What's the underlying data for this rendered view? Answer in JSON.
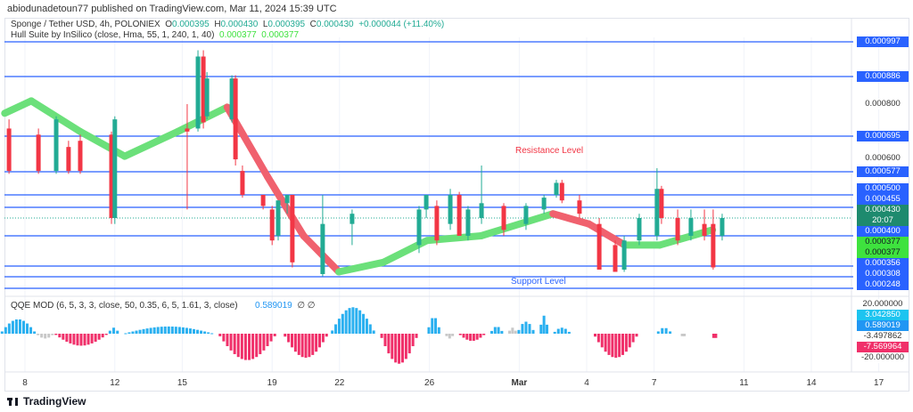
{
  "header": {
    "published": "abiodunadetoun77 published on TradingView.com, Mar 11, 2024 15:39 UTC"
  },
  "legend": {
    "symbol": "Sponge / Tether USD, 4h, POLONIEX",
    "o_label": "O",
    "o": "0.000395",
    "h_label": "H",
    "h": "0.000430",
    "l_label": "L",
    "l": "0.000395",
    "c_label": "C",
    "c": "0.000430",
    "change": "+0.000044 (+11.40%)",
    "hull": "Hull Suite by InSilico (close, Hma, 55, 1, 240, 1, 40)",
    "hull_v1": "0.000377",
    "hull_v2": "0.000377",
    "qqe": "QQE MOD (6, 5, 3, 3, close, 50, 0.35, 6, 5, 1.61, 3, close)",
    "qqe_v": "0.589019",
    "qqe_icons": "∅  ∅"
  },
  "annotations": {
    "resistance": "Resistance Level",
    "support": "Support Level"
  },
  "colors": {
    "up": "#22ab94",
    "down": "#f23645",
    "hull_up": "#6be07a",
    "hull_down": "#f0616e",
    "level": "#2962ff",
    "qqe_blue": "#2ab0f0",
    "qqe_pink": "#f0306a",
    "qqe_gray": "#c8c8c8"
  },
  "price_axis": [
    {
      "text": "0.000997",
      "style": "level"
    },
    {
      "text": "0.000886",
      "style": "level"
    },
    {
      "text": "0.000800",
      "style": "text"
    },
    {
      "text": "0.000695",
      "style": "level"
    },
    {
      "text": "0.000600",
      "style": "text"
    },
    {
      "text": "0.000577",
      "style": "level"
    },
    {
      "text": "0.000500",
      "style": "level"
    },
    {
      "text": "0.000455",
      "style": "level"
    },
    {
      "text": "0.000430",
      "style": "last"
    },
    {
      "text": "20:07",
      "style": "last"
    },
    {
      "text": "0.000400",
      "style": "level"
    },
    {
      "text": "0.000377",
      "style": "hull"
    },
    {
      "text": "0.000377",
      "style": "hull"
    },
    {
      "text": "0.000356",
      "style": "level"
    },
    {
      "text": "0.000308",
      "style": "level"
    },
    {
      "text": "0.000248",
      "style": "level"
    }
  ],
  "qqe_axis": [
    {
      "text": "20.000000",
      "style": "text"
    },
    {
      "text": "3.042850",
      "style": "cyan"
    },
    {
      "text": "0.589019",
      "style": "blue"
    },
    {
      "text": "-3.497862",
      "style": "text"
    },
    {
      "text": "-7.569964",
      "style": "pink"
    },
    {
      "text": "-20.000000",
      "style": "text"
    }
  ],
  "time_axis": [
    {
      "label": "8",
      "day": 0
    },
    {
      "label": "12",
      "day": 4
    },
    {
      "label": "15",
      "day": 7
    },
    {
      "label": "19",
      "day": 11
    },
    {
      "label": "22",
      "day": 14
    },
    {
      "label": "26",
      "day": 18
    },
    {
      "label": "Mar",
      "day": 22
    },
    {
      "label": "4",
      "day": 25
    },
    {
      "label": "7",
      "day": 28
    },
    {
      "label": "11",
      "day": 32
    },
    {
      "label": "14",
      "day": 35
    },
    {
      "label": "17",
      "day": 38
    }
  ],
  "footer": {
    "logo": "TradingView"
  },
  "chart_data": {
    "type": "candlestick",
    "title": "Sponge / Tether USD, 4h, POLONIEX",
    "x_unit": "days since Feb 8 2024",
    "levels": [
      0.000997,
      0.000886,
      0.000695,
      0.000577,
      0.0005,
      0.000455,
      0.0004,
      0.000356,
      0.000308,
      0.000248
    ],
    "last_price": 0.00043,
    "candles": [
      [
        -0.71,
        0.00072,
        0.00075,
        0.00057,
        0.00058
      ],
      [
        0.6,
        0.0007,
        0.00072,
        0.00057,
        0.00058
      ],
      [
        1.39,
        0.00058,
        0.00076,
        0.00057,
        0.00075
      ],
      [
        1.94,
        0.00066,
        0.00068,
        0.00057,
        0.00058
      ],
      [
        2.46,
        0.00068,
        0.0007,
        0.00057,
        0.00058
      ],
      [
        3.85,
        0.0007,
        0.00071,
        0.00042,
        0.00043
      ],
      [
        4.0,
        0.00043,
        0.00076,
        0.00042,
        0.00075
      ],
      [
        7.22,
        0.00072,
        0.0008,
        0.00045,
        0.00071
      ],
      [
        7.7,
        0.00072,
        0.00097,
        0.00071,
        0.00095
      ],
      [
        7.94,
        0.00095,
        0.00097,
        0.00072,
        0.00074
      ],
      [
        8.1,
        0.00076,
        0.0009,
        0.00075,
        0.00088
      ],
      [
        9.21,
        0.00075,
        0.00089,
        0.00074,
        0.00088
      ],
      [
        9.37,
        0.00088,
        0.00089,
        0.0006,
        0.00062
      ],
      [
        9.68,
        0.00058,
        0.0006,
        0.00049,
        0.0005
      ],
      [
        10.6,
        0.0005,
        0.0005,
        0.00045,
        0.00046
      ],
      [
        11.0,
        0.00045,
        0.00046,
        0.00038,
        0.00039
      ],
      [
        11.27,
        0.0004,
        0.00048,
        0.00039,
        0.00048
      ],
      [
        11.67,
        0.00047,
        0.0005,
        0.00044,
        0.0005
      ],
      [
        11.9,
        0.0005,
        0.0005,
        0.00035,
        0.00036
      ],
      [
        13.25,
        0.00032,
        0.0005,
        0.00031,
        0.00042
      ],
      [
        14.56,
        0.00042,
        0.00045,
        0.00038,
        0.00044
      ],
      [
        17.54,
        0.00038,
        0.00046,
        0.00037,
        0.00045
      ],
      [
        17.86,
        0.00045,
        0.0005,
        0.00043,
        0.0005
      ],
      [
        18.33,
        0.00046,
        0.00048,
        0.00038,
        0.00039
      ],
      [
        18.93,
        0.00042,
        0.00052,
        0.00041,
        0.0005
      ],
      [
        19.33,
        0.0005,
        0.00051,
        0.0004,
        0.0004
      ],
      [
        19.72,
        0.0004,
        0.00046,
        0.00039,
        0.00045
      ],
      [
        20.32,
        0.00043,
        0.0006,
        0.00042,
        0.00047
      ],
      [
        21.31,
        0.00046,
        0.00047,
        0.0004,
        0.00041
      ],
      [
        22.3,
        0.00042,
        0.00047,
        0.00041,
        0.00046
      ],
      [
        23.1,
        0.00045,
        0.0005,
        0.00044,
        0.00049
      ],
      [
        23.65,
        0.0005,
        0.00055,
        0.00049,
        0.00054
      ],
      [
        23.9,
        0.00054,
        0.00055,
        0.00047,
        0.00048
      ],
      [
        24.68,
        0.00048,
        0.0005,
        0.00043,
        0.00044
      ],
      [
        25.56,
        0.00042,
        0.00043,
        0.00034,
        0.00034
      ],
      [
        26.27,
        0.00038,
        0.00039,
        0.00033,
        0.00033
      ],
      [
        26.67,
        0.00034,
        0.0004,
        0.00033,
        0.00039
      ],
      [
        27.34,
        0.00039,
        0.00044,
        0.00038,
        0.00043
      ],
      [
        28.13,
        0.0004,
        0.00059,
        0.00039,
        0.00052
      ],
      [
        28.33,
        0.00052,
        0.00053,
        0.00042,
        0.00043
      ],
      [
        29.05,
        0.00043,
        0.00045,
        0.00038,
        0.00039
      ],
      [
        29.64,
        0.0004,
        0.00045,
        0.00039,
        0.00043
      ],
      [
        30.24,
        0.00042,
        0.00045,
        0.00039,
        0.0004
      ],
      [
        30.63,
        0.00042,
        0.00045,
        0.00034,
        0.00035
      ],
      [
        31.03,
        0.0004,
        0.00044,
        0.00039,
        0.00043
      ]
    ],
    "hull": [
      [
        -0.9,
        0.00077,
        "up"
      ],
      [
        0.28,
        0.00081,
        "up"
      ],
      [
        2.46,
        0.00071,
        "up"
      ],
      [
        4.44,
        0.00063,
        "up"
      ],
      [
        6.8,
        0.00071,
        "up"
      ],
      [
        9.0,
        0.00079,
        "up"
      ],
      [
        10.8,
        0.00056,
        "down"
      ],
      [
        12.4,
        0.0004,
        "down"
      ],
      [
        13.97,
        0.00033,
        "down"
      ],
      [
        15.95,
        0.00036,
        "up"
      ],
      [
        17.9,
        0.00039,
        "up"
      ],
      [
        20.3,
        0.0004,
        "up"
      ],
      [
        23.5,
        0.00044,
        "up"
      ],
      [
        25.1,
        0.00042,
        "down"
      ],
      [
        26.7,
        0.00038,
        "down"
      ],
      [
        28.25,
        0.00038,
        "up"
      ],
      [
        30.6,
        0.00041,
        "up"
      ]
    ],
    "qqe_segments": [
      [
        -1.1,
        0.5,
        12,
        "blue"
      ],
      [
        0.5,
        1.3,
        -4,
        "gray"
      ],
      [
        1.3,
        3.7,
        -10,
        "pink"
      ],
      [
        3.7,
        4.2,
        5,
        "blue"
      ],
      [
        4.4,
        8.4,
        6,
        "blue"
      ],
      [
        8.6,
        11.2,
        -22,
        "pink"
      ],
      [
        11.5,
        13.5,
        -20,
        "pink"
      ],
      [
        13.6,
        15.6,
        22,
        "blue"
      ],
      [
        15.8,
        17.5,
        -25,
        "pink"
      ],
      [
        17.9,
        18.5,
        14,
        "blue"
      ],
      [
        18.7,
        19.1,
        -4,
        "gray"
      ],
      [
        19.3,
        20.5,
        -6,
        "pink"
      ],
      [
        20.7,
        21.3,
        6,
        "blue"
      ],
      [
        21.5,
        21.9,
        5,
        "gray"
      ],
      [
        21.9,
        22.7,
        10,
        "blue"
      ],
      [
        22.9,
        23.3,
        15,
        "blue"
      ],
      [
        23.5,
        24.3,
        5,
        "blue"
      ],
      [
        25.3,
        27.3,
        -20,
        "pink"
      ],
      [
        28.1,
        28.8,
        5,
        "blue"
      ],
      [
        29.2,
        29.4,
        -3,
        "gray"
      ],
      [
        30.6,
        30.8,
        -5,
        "pink"
      ]
    ],
    "qqe_range": [
      -20,
      20
    ]
  }
}
